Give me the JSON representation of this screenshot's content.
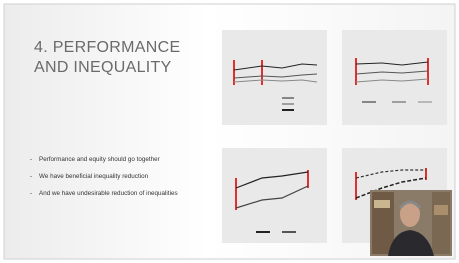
{
  "slide": {
    "title_lines": [
      "4. PERFORMANCE",
      "AND INEQUALITY"
    ],
    "bullets": [
      "Performance and equity should go together",
      "We have beneficial inequality reduction",
      "And we have undesirable reduction of inequalities"
    ]
  }
}
